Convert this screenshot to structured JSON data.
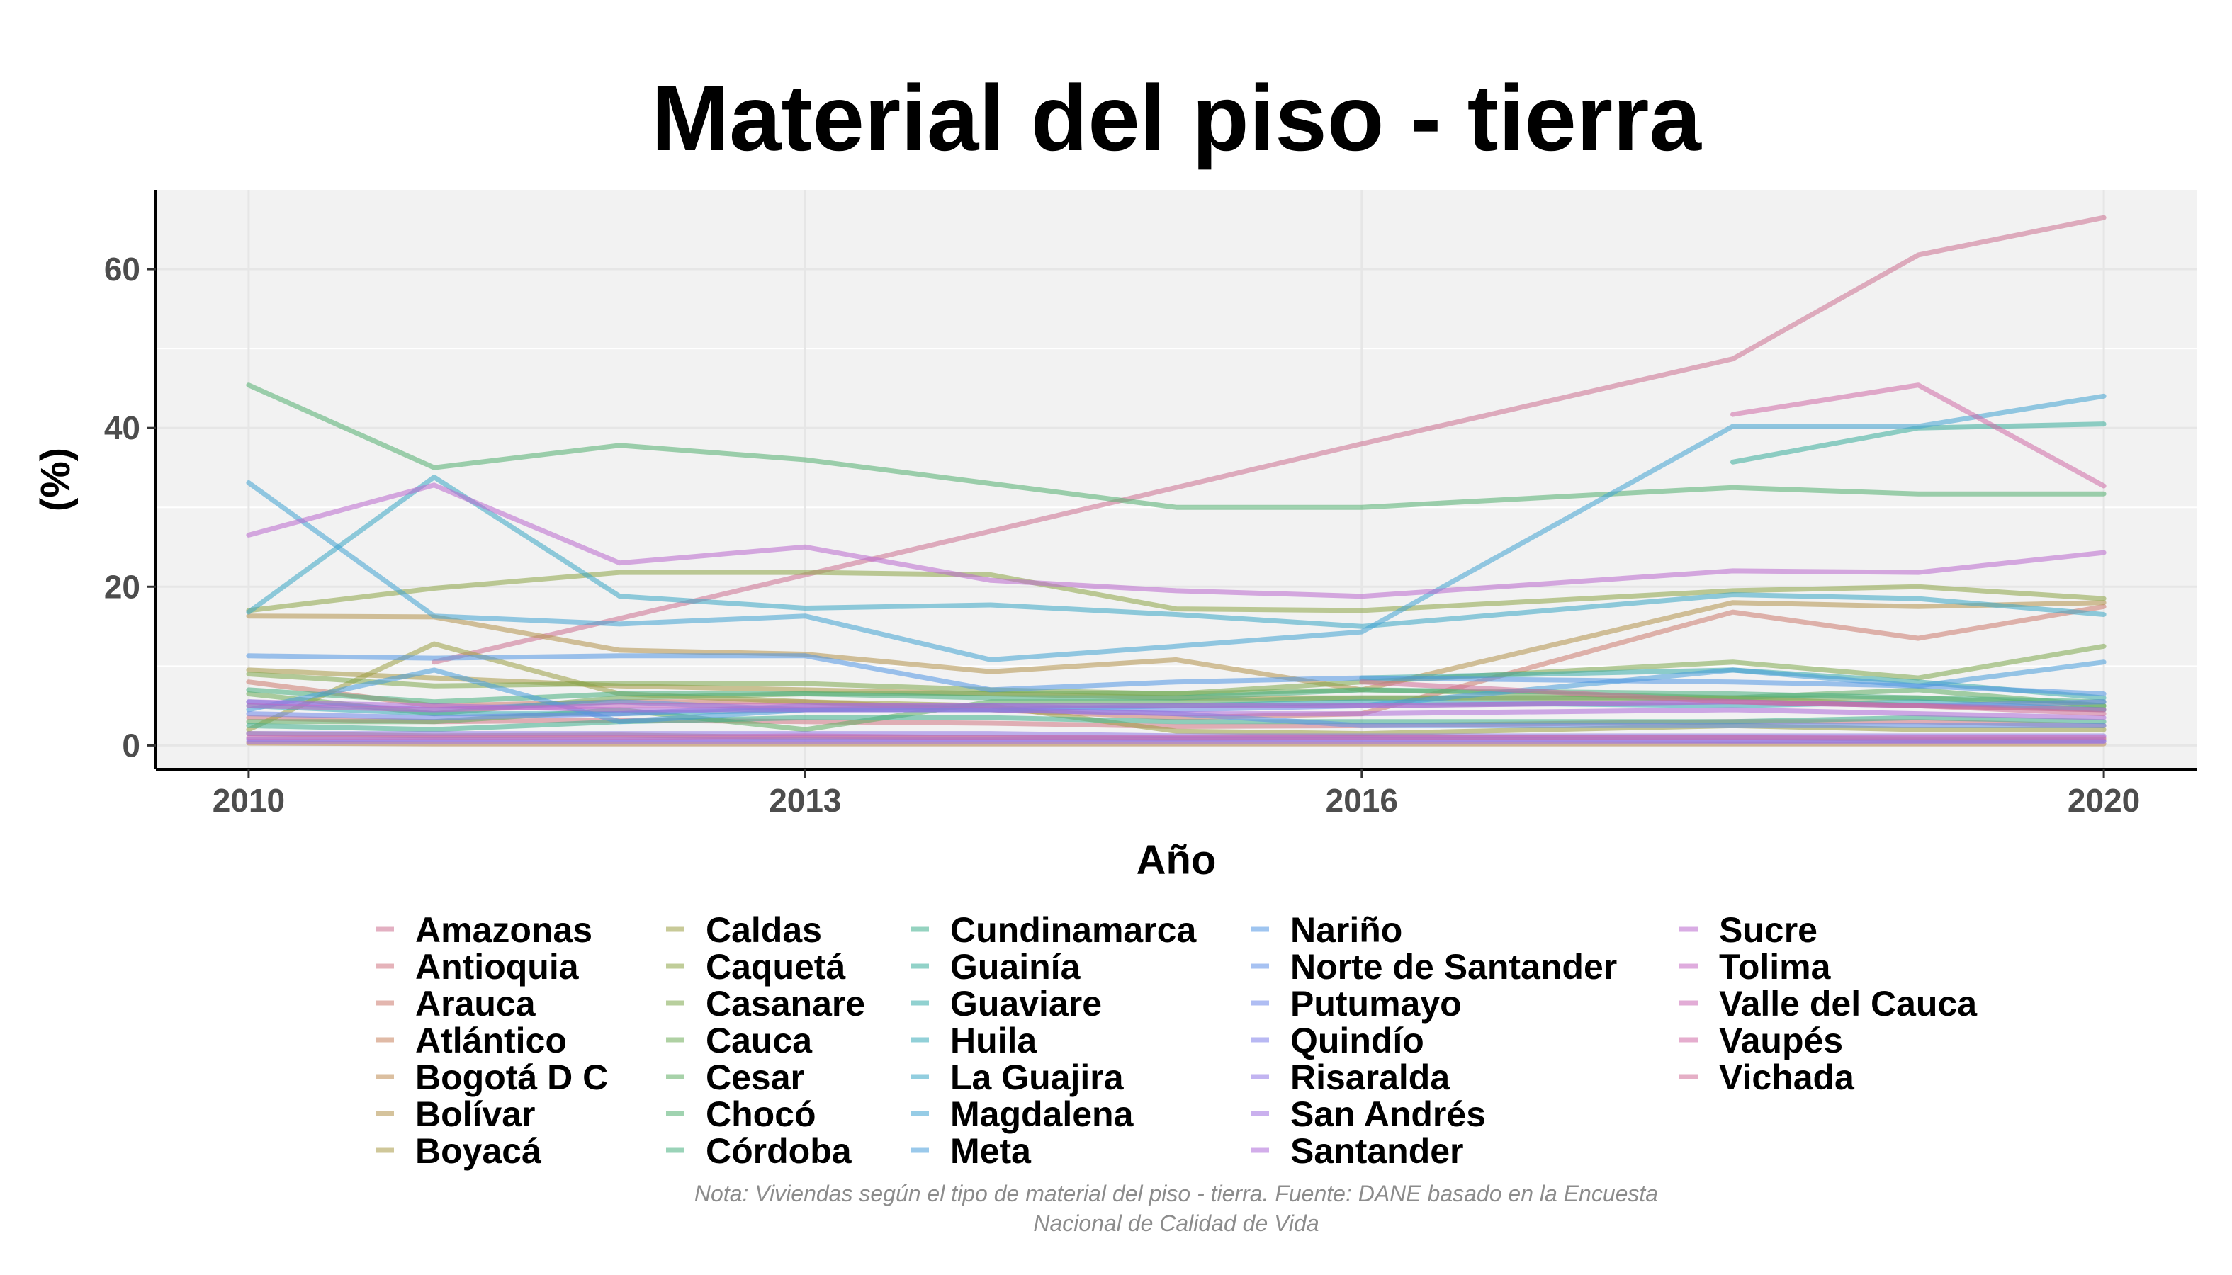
{
  "chart_data": {
    "type": "line",
    "title": "Material del piso - tierra",
    "xlabel": "Año",
    "ylabel": "(%)",
    "x_ticks": [
      "2010",
      "2013",
      "2016",
      "2020"
    ],
    "y_ticks": [
      "0",
      "20",
      "40",
      "60"
    ],
    "xlim": [
      2009.5,
      2020.5
    ],
    "ylim": [
      -3,
      70
    ],
    "grid": true,
    "legend_position": "bottom",
    "caption_lines": [
      "Nota: Viviendas según el tipo de material del piso - tierra. Fuente: DANE basado en la Encuesta",
      "Nacional de Calidad de Vida"
    ],
    "years": [
      2010,
      2011,
      2012,
      2013,
      2014,
      2015,
      2016,
      2018,
      2019,
      2020
    ],
    "series": [
      {
        "name": "Amazonas",
        "color": "#cc6f8f",
        "values": [
          null,
          10.5,
          16.0,
          21.5,
          27.0,
          32.5,
          38.0,
          48.7,
          61.8,
          66.5
        ]
      },
      {
        "name": "Antioquia",
        "color": "#cf7481",
        "values": [
          3.5,
          3.0,
          3.2,
          3.0,
          2.8,
          2.4,
          2.5,
          3.0,
          3.0,
          2.5
        ]
      },
      {
        "name": "Arauca",
        "color": "#cc7a6e",
        "values": [
          8.0,
          5.0,
          5.5,
          5.5,
          4.5,
          3.5,
          4.0,
          16.8,
          13.5,
          17.5
        ]
      },
      {
        "name": "Atlántico",
        "color": "#c7825d",
        "values": [
          1.5,
          1.2,
          1.3,
          1.0,
          1.0,
          0.9,
          1.0,
          1.0,
          0.8,
          0.8
        ]
      },
      {
        "name": "Bogotá D C",
        "color": "#be8a52",
        "values": [
          0.3,
          0.2,
          0.2,
          0.2,
          0.2,
          0.2,
          0.2,
          0.2,
          0.2,
          0.2
        ]
      },
      {
        "name": "Bolívar",
        "color": "#b3924a",
        "values": [
          16.3,
          16.2,
          12.0,
          11.5,
          9.3,
          10.8,
          7.0,
          18.0,
          17.5,
          18.0
        ]
      },
      {
        "name": "Boyacá",
        "color": "#a89945",
        "values": [
          9.5,
          8.5,
          7.5,
          7.0,
          6.5,
          6.0,
          6.0,
          6.0,
          5.0,
          4.5
        ]
      },
      {
        "name": "Caldas",
        "color": "#9a9f44",
        "values": [
          2.0,
          12.8,
          6.5,
          5.5,
          5.0,
          1.8,
          1.5,
          2.5,
          2.0,
          2.0
        ]
      },
      {
        "name": "Caquetá",
        "color": "#8ca446",
        "values": [
          17.0,
          19.8,
          21.8,
          21.8,
          21.5,
          17.2,
          17.0,
          19.5,
          20.0,
          18.5
        ]
      },
      {
        "name": "Casanare",
        "color": "#7da84d",
        "values": [
          9.0,
          7.5,
          7.8,
          7.8,
          7.0,
          6.5,
          8.0,
          10.5,
          8.5,
          12.5
        ]
      },
      {
        "name": "Cauca",
        "color": "#6eab57",
        "values": [
          6.5,
          4.0,
          6.0,
          6.5,
          6.5,
          6.5,
          7.0,
          6.0,
          6.0,
          5.0
        ]
      },
      {
        "name": "Cesar",
        "color": "#5fad63",
        "values": [
          3.0,
          3.0,
          4.5,
          2.0,
          5.5,
          5.5,
          6.0,
          6.0,
          7.0,
          5.0
        ]
      },
      {
        "name": "Chocó",
        "color": "#52ae70",
        "values": [
          45.4,
          35.0,
          37.8,
          36.0,
          33.0,
          30.0,
          30.0,
          32.5,
          31.7,
          31.7
        ]
      },
      {
        "name": "Córdoba",
        "color": "#47ae7e",
        "values": [
          7.0,
          5.5,
          6.5,
          6.5,
          6.0,
          6.0,
          7.0,
          6.5,
          6.0,
          5.5
        ]
      },
      {
        "name": "Cundinamarca",
        "color": "#3eae8d",
        "values": [
          2.5,
          2.0,
          3.0,
          3.5,
          3.5,
          3.0,
          3.0,
          3.0,
          3.5,
          3.0
        ]
      },
      {
        "name": "Guainía",
        "color": "#39ad9b",
        "values": [
          null,
          null,
          null,
          null,
          null,
          null,
          null,
          35.7,
          40.0,
          40.5
        ]
      },
      {
        "name": "Guaviare",
        "color": "#36abaa",
        "values": [
          null,
          null,
          null,
          null,
          null,
          null,
          8.5,
          9.5,
          8.0,
          6.0
        ]
      },
      {
        "name": "Huila",
        "color": "#36a9b8",
        "values": [
          5.0,
          4.0,
          4.0,
          4.5,
          5.0,
          5.0,
          5.5,
          5.0,
          5.5,
          4.5
        ]
      },
      {
        "name": "La Guajira",
        "color": "#39a6c5",
        "values": [
          16.8,
          33.8,
          18.8,
          17.3,
          17.7,
          16.5,
          15.0,
          19.0,
          18.5,
          16.5
        ]
      },
      {
        "name": "Magdalena",
        "color": "#3fa2d1",
        "values": [
          33.1,
          16.3,
          15.3,
          16.3,
          10.8,
          12.5,
          14.3,
          40.2,
          40.2,
          44.0
        ]
      },
      {
        "name": "Meta",
        "color": "#479ddb",
        "values": [
          4.5,
          9.5,
          3.0,
          4.5,
          4.5,
          5.0,
          5.0,
          9.5,
          7.5,
          10.5
        ]
      },
      {
        "name": "Nariño",
        "color": "#5196e3",
        "values": [
          11.3,
          11.0,
          11.3,
          11.3,
          7.0,
          8.0,
          8.5,
          8.0,
          7.5,
          6.5
        ]
      },
      {
        "name": "Norte de Santander",
        "color": "#5e8fe8",
        "values": [
          5.5,
          4.5,
          5.5,
          4.5,
          4.5,
          4.0,
          2.5,
          2.5,
          2.5,
          2.5
        ]
      },
      {
        "name": "Putumayo",
        "color": "#6e86ea",
        "values": [
          4.0,
          3.5,
          4.0,
          5.0,
          5.0,
          4.5,
          5.0,
          5.5,
          5.0,
          5.5
        ]
      },
      {
        "name": "Quindío",
        "color": "#7e7ee9",
        "values": [
          0.8,
          0.8,
          0.8,
          0.8,
          0.8,
          0.8,
          0.8,
          0.6,
          0.6,
          0.6
        ]
      },
      {
        "name": "Risaralda",
        "color": "#8f76e6",
        "values": [
          1.5,
          1.5,
          1.5,
          1.5,
          1.5,
          1.2,
          1.2,
          1.2,
          1.2,
          1.2
        ]
      },
      {
        "name": "San Andrés",
        "color": "#9f6fe0",
        "values": [
          0.5,
          0.5,
          0.5,
          0.5,
          0.5,
          0.5,
          0.5,
          0.5,
          0.5,
          0.5
        ]
      },
      {
        "name": "Santander",
        "color": "#ad69d8",
        "values": [
          5.5,
          5.0,
          4.5,
          4.5,
          4.5,
          4.0,
          4.0,
          4.5,
          4.0,
          3.5
        ]
      },
      {
        "name": "Sucre",
        "color": "#ba67ce",
        "values": [
          26.5,
          32.8,
          23.0,
          25.0,
          20.8,
          19.5,
          18.8,
          22.0,
          21.8,
          24.3
        ]
      },
      {
        "name": "Tolima",
        "color": "#c467c2",
        "values": [
          5.0,
          4.5,
          5.0,
          5.0,
          5.0,
          5.0,
          5.0,
          5.5,
          5.0,
          4.5
        ]
      },
      {
        "name": "Valle del Cauca",
        "color": "#cb68b5",
        "values": [
          1.0,
          1.0,
          1.0,
          1.2,
          1.0,
          1.0,
          1.0,
          1.0,
          1.0,
          1.0
        ]
      },
      {
        "name": "Vaupés",
        "color": "#cf6aa6",
        "values": [
          null,
          null,
          null,
          null,
          null,
          null,
          null,
          41.7,
          45.4,
          32.7
        ]
      },
      {
        "name": "Vichada",
        "color": "#d06d98",
        "values": [
          null,
          null,
          null,
          null,
          null,
          null,
          8.0,
          5.5,
          5.0,
          4.0
        ]
      }
    ]
  }
}
